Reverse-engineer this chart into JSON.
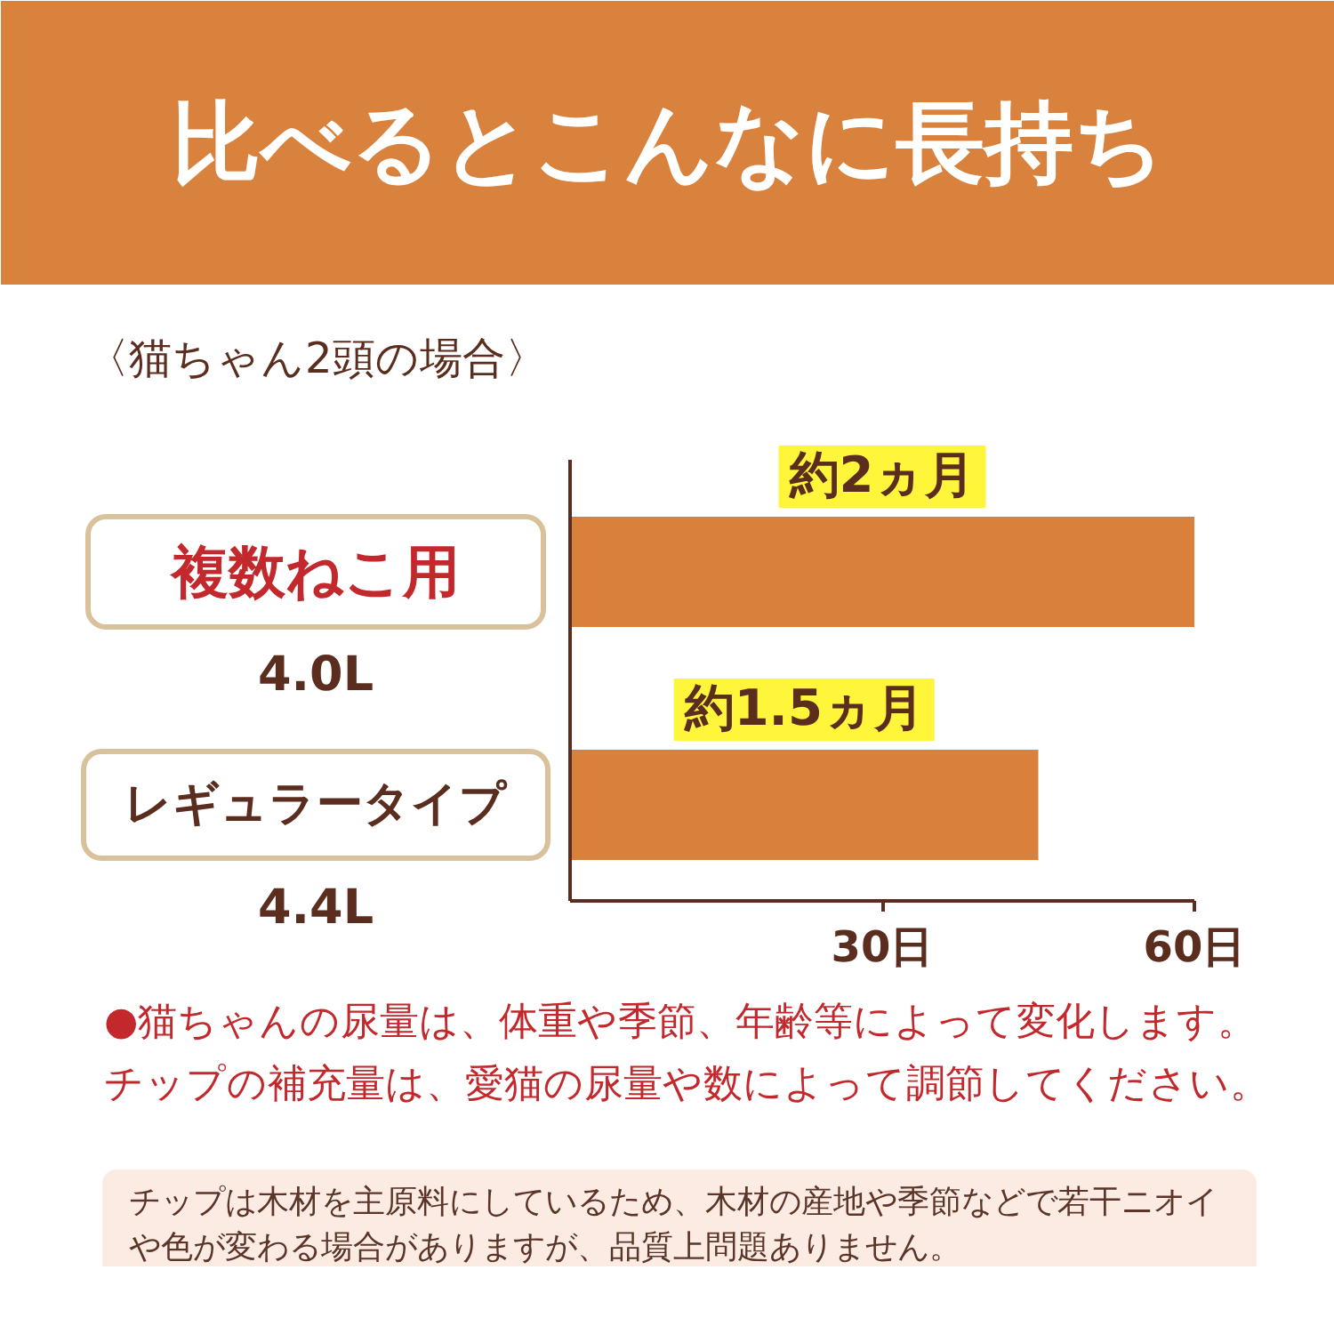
{
  "chart_data": {
    "type": "bar",
    "orientation": "horizontal",
    "title": "比べるとこんなに長持ち",
    "subtitle": "〈猫ちゃん2頭の場合〉",
    "categories": [
      "複数ねこ用",
      "レギュラータイプ"
    ],
    "values": [
      60,
      45
    ],
    "value_labels": [
      "約2ヵ月",
      "約1.5ヵ月"
    ],
    "color": "#d9813a",
    "xlim": [
      0,
      60
    ],
    "xticks": [
      {
        "value": 30,
        "label": "30日"
      },
      {
        "value": 60,
        "label": "60日"
      }
    ],
    "annotations": [
      "4.0L",
      "4.4L",
      "●猫ちゃんの尿量は、体重や季節、年齢等によって変化します。チップの補充量は、愛猫の尿量や数によって調節してください。",
      "チップは木材を主原料にしているため、木材の産地や季節などで若干ニオイや色が変わる場合がありますが、品質上問題ありません。"
    ]
  }
}
